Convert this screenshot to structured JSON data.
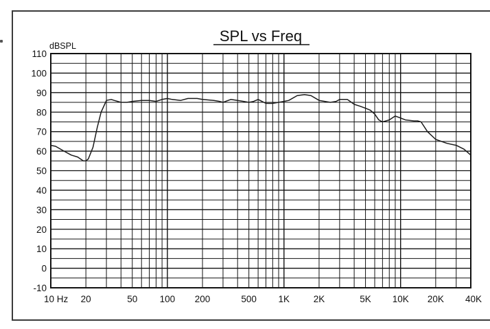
{
  "chart_data": {
    "type": "line",
    "title": "SPL vs Freq",
    "ylabel": "dBSPL",
    "xlabel": "",
    "xscale": "log",
    "xlim": [
      10,
      40000
    ],
    "ylim": [
      -10,
      110
    ],
    "grid": true,
    "yticks": [
      {
        "value": 110,
        "label": "110"
      },
      {
        "value": 100,
        "label": "100"
      },
      {
        "value": 90,
        "label": "90"
      },
      {
        "value": 80,
        "label": "80"
      },
      {
        "value": 70,
        "label": "70"
      },
      {
        "value": 60,
        "label": "60"
      },
      {
        "value": 50,
        "label": "50"
      },
      {
        "value": 40,
        "label": "40"
      },
      {
        "value": 30,
        "label": "30"
      },
      {
        "value": 20,
        "label": "20"
      },
      {
        "value": 10,
        "label": "10"
      },
      {
        "value": 0,
        "label": "0"
      },
      {
        "value": -10,
        "label": "-10"
      }
    ],
    "xticks": [
      {
        "value": 10,
        "label": "10 Hz"
      },
      {
        "value": 20,
        "label": "20"
      },
      {
        "value": 50,
        "label": "50"
      },
      {
        "value": 100,
        "label": "100"
      },
      {
        "value": 200,
        "label": "200"
      },
      {
        "value": 500,
        "label": "500"
      },
      {
        "value": 1000,
        "label": "1K"
      },
      {
        "value": 2000,
        "label": "2K"
      },
      {
        "value": 5000,
        "label": "5K"
      },
      {
        "value": 10000,
        "label": "10K"
      },
      {
        "value": 20000,
        "label": "20K"
      },
      {
        "value": 40000,
        "label": "40K"
      }
    ],
    "series": [
      {
        "name": "SPL",
        "color": "#1a1a1a",
        "x": [
          10,
          11,
          13,
          15,
          17,
          19,
          20,
          21,
          23,
          25,
          27,
          30,
          33,
          35,
          40,
          45,
          50,
          60,
          70,
          80,
          90,
          100,
          110,
          130,
          150,
          180,
          200,
          250,
          280,
          300,
          350,
          400,
          450,
          500,
          550,
          600,
          700,
          800,
          900,
          1000,
          1100,
          1300,
          1500,
          1700,
          2000,
          2500,
          2800,
          3000,
          3500,
          4000,
          4500,
          5000,
          5500,
          6000,
          6500,
          7000,
          8000,
          9000,
          10000,
          11000,
          13000,
          14000,
          15000,
          17000,
          20000,
          25000,
          30000,
          35000,
          40000
        ],
        "y": [
          63,
          62.5,
          60,
          58,
          57,
          55,
          55,
          56,
          62,
          72,
          80,
          86,
          86.5,
          86,
          85,
          85,
          85.5,
          86,
          86,
          85.5,
          86.5,
          87,
          86.5,
          86,
          87,
          87,
          86.5,
          86,
          85.5,
          85,
          86.5,
          86,
          85.5,
          85,
          85.5,
          86.5,
          84.5,
          84.5,
          85,
          85.5,
          86,
          88.5,
          89,
          88.5,
          86,
          85,
          85.5,
          86.5,
          86.5,
          84,
          83,
          82,
          81,
          79,
          76,
          75,
          76,
          78,
          77,
          76,
          75.5,
          75.5,
          75,
          70,
          66,
          64,
          63,
          61,
          58
        ]
      }
    ]
  }
}
